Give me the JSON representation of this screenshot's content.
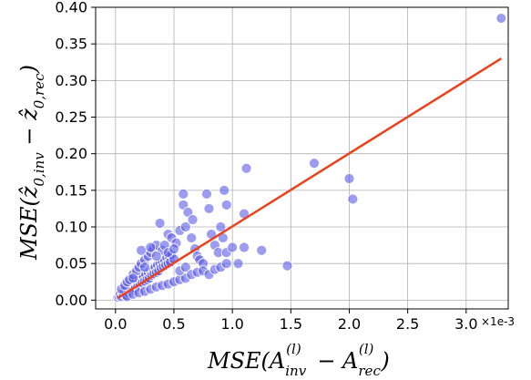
{
  "chart_data": {
    "type": "scatter",
    "title": "",
    "xlabel": "MSE(A_inv^(l) − A_rec^(l))",
    "ylabel": "MSE(ẑ_0,inv − ẑ_0,rec)",
    "x_scale_note": "×1e-3",
    "xlim": [
      -0.17,
      3.36
    ],
    "ylim": [
      -0.012,
      0.4
    ],
    "xticks": [
      0.0,
      0.5,
      1.0,
      1.5,
      2.0,
      2.5,
      3.0
    ],
    "xtick_labels": [
      "0.0",
      "0.5",
      "1.0",
      "1.5",
      "2.0",
      "2.5",
      "3.0"
    ],
    "yticks": [
      0.0,
      0.05,
      0.1,
      0.15,
      0.2,
      0.25,
      0.3,
      0.35,
      0.4
    ],
    "ytick_labels": [
      "0.00",
      "0.05",
      "0.10",
      "0.15",
      "0.20",
      "0.25",
      "0.30",
      "0.35",
      "0.40"
    ],
    "grid": true,
    "legend": "none",
    "series": [
      {
        "marker_color": "#5a5ae6",
        "points": [
          [
            0.02,
            0.004
          ],
          [
            0.03,
            0.006
          ],
          [
            0.04,
            0.008
          ],
          [
            0.05,
            0.005
          ],
          [
            0.06,
            0.01
          ],
          [
            0.07,
            0.008
          ],
          [
            0.08,
            0.012
          ],
          [
            0.09,
            0.006
          ],
          [
            0.1,
            0.015
          ],
          [
            0.11,
            0.01
          ],
          [
            0.12,
            0.018
          ],
          [
            0.13,
            0.012
          ],
          [
            0.14,
            0.02
          ],
          [
            0.15,
            0.014
          ],
          [
            0.16,
            0.022
          ],
          [
            0.17,
            0.016
          ],
          [
            0.18,
            0.025
          ],
          [
            0.19,
            0.018
          ],
          [
            0.2,
            0.028
          ],
          [
            0.21,
            0.02
          ],
          [
            0.22,
            0.03
          ],
          [
            0.23,
            0.024
          ],
          [
            0.24,
            0.032
          ],
          [
            0.25,
            0.026
          ],
          [
            0.26,
            0.035
          ],
          [
            0.27,
            0.028
          ],
          [
            0.28,
            0.038
          ],
          [
            0.29,
            0.03
          ],
          [
            0.3,
            0.04
          ],
          [
            0.31,
            0.034
          ],
          [
            0.32,
            0.042
          ],
          [
            0.33,
            0.036
          ],
          [
            0.34,
            0.045
          ],
          [
            0.35,
            0.038
          ],
          [
            0.36,
            0.048
          ],
          [
            0.37,
            0.04
          ],
          [
            0.38,
            0.05
          ],
          [
            0.39,
            0.044
          ],
          [
            0.4,
            0.052
          ],
          [
            0.41,
            0.046
          ],
          [
            0.42,
            0.055
          ],
          [
            0.43,
            0.048
          ],
          [
            0.44,
            0.058
          ],
          [
            0.45,
            0.05
          ],
          [
            0.46,
            0.06
          ],
          [
            0.47,
            0.052
          ],
          [
            0.48,
            0.062
          ],
          [
            0.5,
            0.056
          ],
          [
            0.05,
            0.015
          ],
          [
            0.08,
            0.02
          ],
          [
            0.1,
            0.025
          ],
          [
            0.12,
            0.028
          ],
          [
            0.15,
            0.035
          ],
          [
            0.18,
            0.04
          ],
          [
            0.2,
            0.045
          ],
          [
            0.22,
            0.05
          ],
          [
            0.25,
            0.055
          ],
          [
            0.28,
            0.06
          ],
          [
            0.3,
            0.065
          ],
          [
            0.32,
            0.07
          ],
          [
            0.35,
            0.075
          ],
          [
            0.1,
            0.005
          ],
          [
            0.15,
            0.008
          ],
          [
            0.2,
            0.01
          ],
          [
            0.25,
            0.012
          ],
          [
            0.3,
            0.015
          ],
          [
            0.35,
            0.018
          ],
          [
            0.4,
            0.02
          ],
          [
            0.45,
            0.022
          ],
          [
            0.5,
            0.025
          ],
          [
            0.55,
            0.028
          ],
          [
            0.6,
            0.03
          ],
          [
            0.22,
            0.068
          ],
          [
            0.3,
            0.072
          ],
          [
            0.38,
            0.105
          ],
          [
            0.4,
            0.068
          ],
          [
            0.42,
            0.075
          ],
          [
            0.45,
            0.09
          ],
          [
            0.48,
            0.085
          ],
          [
            0.52,
            0.078
          ],
          [
            0.55,
            0.095
          ],
          [
            0.58,
            0.145
          ],
          [
            0.58,
            0.13
          ],
          [
            0.6,
            0.1
          ],
          [
            0.62,
            0.12
          ],
          [
            0.65,
            0.085
          ],
          [
            0.68,
            0.07
          ],
          [
            0.7,
            0.06
          ],
          [
            0.72,
            0.055
          ],
          [
            0.75,
            0.05
          ],
          [
            0.78,
            0.145
          ],
          [
            0.8,
            0.125
          ],
          [
            0.82,
            0.09
          ],
          [
            0.85,
            0.075
          ],
          [
            0.88,
            0.065
          ],
          [
            0.9,
            0.1
          ],
          [
            0.92,
            0.085
          ],
          [
            0.95,
            0.065
          ],
          [
            1.0,
            0.072
          ],
          [
            1.05,
            0.05
          ],
          [
            0.55,
            0.04
          ],
          [
            0.6,
            0.045
          ],
          [
            0.65,
            0.035
          ],
          [
            0.7,
            0.038
          ],
          [
            0.75,
            0.04
          ],
          [
            0.8,
            0.035
          ],
          [
            0.85,
            0.042
          ],
          [
            0.9,
            0.045
          ],
          [
            0.95,
            0.05
          ],
          [
            1.1,
            0.118
          ],
          [
            1.1,
            0.072
          ],
          [
            1.12,
            0.18
          ],
          [
            1.25,
            0.068
          ],
          [
            1.47,
            0.047
          ],
          [
            1.7,
            0.187
          ],
          [
            2.0,
            0.166
          ],
          [
            2.03,
            0.138
          ],
          [
            3.3,
            0.385
          ],
          [
            0.95,
            0.13
          ],
          [
            0.93,
            0.15
          ],
          [
            0.66,
            0.11
          ],
          [
            0.35,
            0.06
          ],
          [
            0.45,
            0.065
          ],
          [
            0.5,
            0.07
          ],
          [
            0.15,
            0.03
          ],
          [
            0.25,
            0.045
          ]
        ]
      }
    ],
    "fit_line": {
      "color": "#e8431c",
      "x": [
        0.02,
        3.3
      ],
      "y": [
        0.003,
        0.33
      ]
    }
  }
}
